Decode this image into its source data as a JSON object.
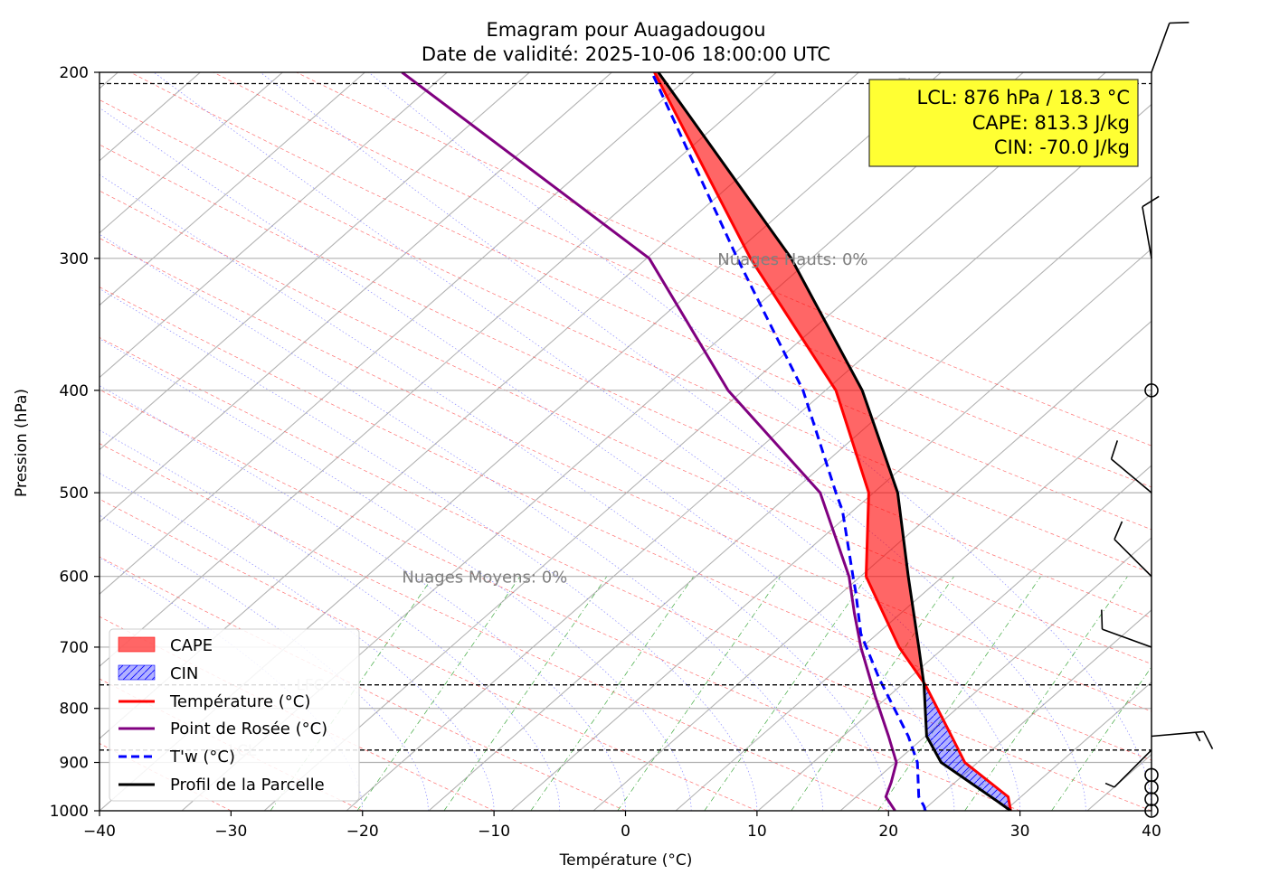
{
  "figure": {
    "title_line1": "Emagram pour Auagadougou",
    "title_line2": "Date de validité: 2025-10-06 18:00:00 UTC"
  },
  "chart_data": {
    "type": "line",
    "title": "Emagram pour Auagadougou",
    "subtitle": "Date de validité: 2025-10-06 18:00:00 UTC",
    "xlabel": "Température (°C)",
    "ylabel": "Pression (hPa)",
    "xlim": [
      -40,
      40
    ],
    "ylim": [
      1000,
      200
    ],
    "y_scale": "log",
    "x_ticks": [
      -40,
      -30,
      -20,
      -10,
      0,
      10,
      20,
      30,
      40
    ],
    "x_tick_labels": [
      "−40",
      "−30",
      "−20",
      "−10",
      "0",
      "10",
      "20",
      "30",
      "40"
    ],
    "y_ticks": [
      1000,
      900,
      800,
      700,
      600,
      500,
      400,
      300,
      200
    ],
    "y_tick_labels": [
      "1000",
      "900",
      "800",
      "700",
      "600",
      "500",
      "400",
      "300",
      "200"
    ],
    "series": [
      {
        "name": "Température (°C)",
        "color": "#ff0000",
        "style": "solid",
        "points": [
          [
            29.3,
            1000
          ],
          [
            29.1,
            970
          ],
          [
            25.8,
            900
          ],
          [
            24.8,
            850
          ],
          [
            22.8,
            760
          ],
          [
            20.8,
            700
          ],
          [
            18.3,
            600
          ],
          [
            18.5,
            500
          ],
          [
            16.0,
            400
          ],
          [
            9.5,
            300
          ],
          [
            2.2,
            200
          ]
        ]
      },
      {
        "name": "Point de Rosée (°C)",
        "color": "#800080",
        "style": "solid",
        "points": [
          [
            20.5,
            1000
          ],
          [
            19.8,
            970
          ],
          [
            20.2,
            940
          ],
          [
            20.6,
            900
          ],
          [
            20.0,
            850
          ],
          [
            19.0,
            780
          ],
          [
            17.9,
            700
          ],
          [
            17.4,
            650
          ],
          [
            17.0,
            600
          ],
          [
            14.8,
            500
          ],
          [
            7.8,
            400
          ],
          [
            1.8,
            300
          ],
          [
            -17.0,
            200
          ]
        ]
      },
      {
        "name": "T'w (°C)",
        "color": "#0000ff",
        "style": "dashed",
        "points": [
          [
            22.8,
            1000
          ],
          [
            22.7,
            990
          ],
          [
            22.3,
            970
          ],
          [
            22.2,
            900
          ],
          [
            21.5,
            850
          ],
          [
            19.3,
            750
          ],
          [
            17.9,
            680
          ],
          [
            17.5,
            620
          ],
          [
            17.3,
            600
          ],
          [
            16.5,
            520
          ],
          [
            16.0,
            500
          ],
          [
            13.5,
            400
          ],
          [
            8.5,
            300
          ],
          [
            2.0,
            200
          ]
        ]
      },
      {
        "name": "Profil de la Parcelle",
        "color": "#000000",
        "style": "solid",
        "points": [
          [
            29.3,
            1000
          ],
          [
            28.3,
            980
          ],
          [
            24.0,
            900
          ],
          [
            22.9,
            850
          ],
          [
            22.7,
            760
          ],
          [
            22.3,
            700
          ],
          [
            21.5,
            600
          ],
          [
            20.7,
            500
          ],
          [
            18.0,
            400
          ],
          [
            12.6,
            300
          ],
          [
            2.5,
            200
          ]
        ]
      }
    ],
    "cape_cin_fills": [
      {
        "name": "CAPE",
        "color": "#ff0000",
        "alpha": 0.6,
        "upper": [
          [
            22.8,
            760
          ],
          [
            22.3,
            700
          ],
          [
            21.5,
            600
          ],
          [
            20.7,
            500
          ],
          [
            18.0,
            400
          ],
          [
            12.6,
            300
          ],
          [
            2.5,
            200
          ]
        ],
        "lower": [
          [
            22.8,
            760
          ],
          [
            20.8,
            700
          ],
          [
            18.3,
            600
          ],
          [
            18.5,
            500
          ],
          [
            16.0,
            400
          ],
          [
            9.5,
            300
          ],
          [
            2.2,
            200
          ]
        ]
      },
      {
        "name": "CIN",
        "color": "#0000ff",
        "alpha": 0.3,
        "upper": [
          [
            29.3,
            1000
          ],
          [
            29.1,
            970
          ],
          [
            25.8,
            900
          ],
          [
            24.8,
            850
          ],
          [
            22.8,
            760
          ]
        ],
        "lower": [
          [
            29.3,
            1000
          ],
          [
            28.3,
            980
          ],
          [
            24.0,
            900
          ],
          [
            22.9,
            850
          ],
          [
            22.8,
            760
          ]
        ]
      }
    ],
    "levels": [
      {
        "name": "EL",
        "pressure": 205
      },
      {
        "name": "LFC",
        "pressure": 760
      },
      {
        "name": "LCL",
        "pressure": 876
      }
    ],
    "annotations": [
      {
        "text": "Nuages Hauts: 0%",
        "t": 7.0,
        "p": 300
      },
      {
        "text": "Nuages Moyens: 0%",
        "t": -17.0,
        "p": 600
      }
    ],
    "info_box": {
      "lines": [
        "LCL: 876 hPa / 18.3 °C",
        "CAPE: 813.3 J/kg",
        "CIN: -70.0 J/kg"
      ],
      "background": "#ffff33"
    },
    "wind_barbs": [
      {
        "p": 200,
        "speed": 10,
        "dir": 20
      },
      {
        "p": 300,
        "speed": 10,
        "dir": 350
      },
      {
        "p": 400,
        "speed": 0,
        "dir": 0
      },
      {
        "p": 500,
        "speed": 10,
        "dir": 310
      },
      {
        "p": 600,
        "speed": 10,
        "dir": 315
      },
      {
        "p": 700,
        "speed": 10,
        "dir": 290
      },
      {
        "p": 850,
        "speed": 15,
        "dir": 85
      },
      {
        "p": 876,
        "speed": 5,
        "dir": 225
      },
      {
        "p": 925,
        "speed": 0,
        "dir": 0
      },
      {
        "p": 950,
        "speed": 0,
        "dir": 0
      },
      {
        "p": 975,
        "speed": 0,
        "dir": 0
      },
      {
        "p": 1000,
        "speed": 0,
        "dir": 0
      }
    ],
    "legend": {
      "position": "lower-left",
      "entries": [
        {
          "label": "CAPE",
          "kind": "patch",
          "color": "#ff0000"
        },
        {
          "label": "CIN",
          "kind": "hatch",
          "color": "#0000ff"
        },
        {
          "label": "Température (°C)",
          "kind": "line",
          "color": "#ff0000"
        },
        {
          "label": "Point de Rosée (°C)",
          "kind": "line",
          "color": "#800080"
        },
        {
          "label": "T'w (°C)",
          "kind": "dashed",
          "color": "#0000ff"
        },
        {
          "label": "Profil de la Parcelle",
          "kind": "line",
          "color": "#000000"
        }
      ]
    }
  }
}
